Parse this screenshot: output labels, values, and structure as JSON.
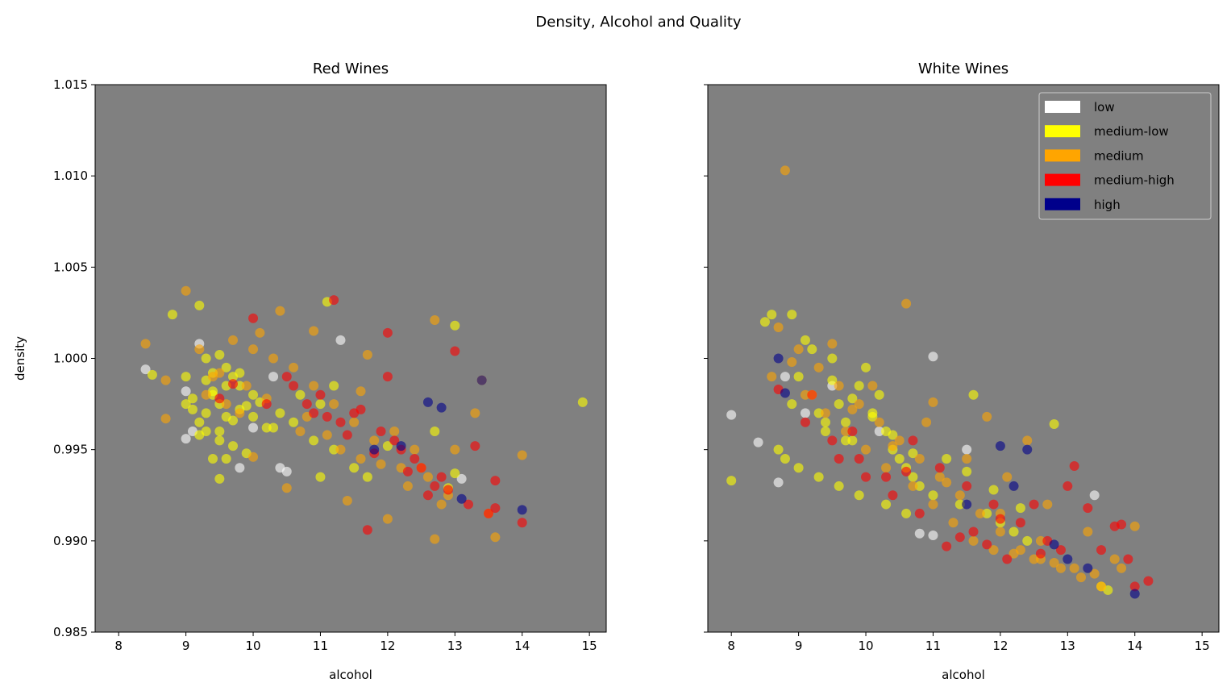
{
  "suptitle": "Density, Alcohol and Quality",
  "chart_data": [
    {
      "type": "scatter",
      "title": "Red Wines",
      "xlabel": "alcohol",
      "ylabel": "density",
      "xlim": [
        7.65,
        15.25
      ],
      "ylim": [
        0.985,
        1.015
      ],
      "xticks": [
        "8",
        "9",
        "10",
        "11",
        "12",
        "13",
        "14",
        "15"
      ],
      "yticks": [
        "0.985",
        "0.990",
        "0.995",
        "1.000",
        "1.005",
        "1.010",
        "1.015"
      ],
      "background": "#808080",
      "series": [
        {
          "name": "low",
          "color": "#ffffff",
          "x": [
            9.0,
            9.1,
            8.4,
            9.2,
            10.4,
            10.5,
            13.1,
            11.3,
            10.0,
            9.8,
            9.0,
            10.3
          ],
          "y": [
            0.9956,
            0.996,
            0.9994,
            1.0008,
            0.994,
            0.9938,
            0.9934,
            1.001,
            0.9962,
            0.994,
            0.9982,
            0.999
          ]
        },
        {
          "name": "medium-low",
          "color": "#ffff00",
          "x": [
            9.4,
            9.5,
            9.3,
            9.6,
            9.2,
            9.7,
            9.1,
            9.8,
            9.5,
            9.3,
            10.0,
            9.6,
            9.4,
            9.9,
            9.2,
            9.7,
            10.2,
            9.0,
            9.5,
            10.4,
            9.8,
            9.3,
            9.6,
            10.1,
            9.4,
            9.7,
            8.8,
            9.2,
            11.1,
            14.9,
            13.0,
            12.7,
            9.5,
            10.6,
            10.9,
            11.2,
            11.5,
            12.0,
            9.9,
            10.3,
            9.1,
            9.8,
            10.7,
            11.0,
            9.6,
            9.3,
            11.7,
            13.0,
            12.9,
            9.4,
            9.0,
            8.5,
            9.5,
            10.0,
            11.2,
            11.0
          ],
          "y": [
            0.998,
            0.9975,
            0.997,
            0.9985,
            0.9965,
            0.999,
            0.9978,
            0.9972,
            0.996,
            0.9988,
            0.9968,
            0.9995,
            0.9982,
            0.9974,
            0.9958,
            0.9966,
            0.9962,
            0.9975,
            0.9955,
            0.997,
            0.9985,
            1.0,
            0.9945,
            0.9976,
            0.9992,
            0.9952,
            1.0024,
            1.0029,
            1.0031,
            0.9976,
            1.0018,
            0.996,
            0.9934,
            0.9965,
            0.9955,
            0.995,
            0.994,
            0.9952,
            0.9948,
            0.9962,
            0.9972,
            0.9992,
            0.998,
            0.9975,
            0.9968,
            0.996,
            0.9935,
            0.9937,
            0.9929,
            0.9945,
            0.999,
            0.9991,
            1.0002,
            0.998,
            0.9985,
            0.9935
          ]
        },
        {
          "name": "medium",
          "color": "#ffa500",
          "x": [
            9.0,
            8.4,
            9.4,
            9.7,
            10.0,
            10.3,
            10.6,
            10.9,
            11.2,
            11.5,
            11.8,
            12.1,
            12.4,
            12.7,
            13.0,
            13.3,
            14.0,
            13.6,
            12.7,
            12.0,
            11.4,
            10.5,
            10.1,
            9.8,
            9.5,
            9.2,
            8.7,
            9.9,
            10.2,
            10.8,
            11.1,
            11.6,
            12.2,
            12.6,
            12.9,
            13.4,
            13.5,
            11.7,
            10.4,
            9.6,
            10.7,
            11.3,
            11.9,
            12.3,
            10.0,
            9.3,
            10.9,
            11.6,
            12.5,
            12.8,
            8.7
          ],
          "y": [
            1.0037,
            1.0008,
            0.999,
            1.001,
            1.0005,
            1.0,
            0.9995,
            0.9985,
            0.9975,
            0.9965,
            0.9955,
            0.996,
            0.995,
            1.0021,
            0.995,
            0.997,
            0.9947,
            0.9902,
            0.9901,
            0.9912,
            0.9922,
            0.9929,
            1.0014,
            0.997,
            0.9992,
            1.0005,
            0.9967,
            0.9985,
            0.9978,
            0.9968,
            0.9958,
            0.9945,
            0.994,
            0.9935,
            0.9925,
            0.9988,
            0.9915,
            1.0002,
            1.0026,
            0.9975,
            0.996,
            0.995,
            0.9942,
            0.993,
            0.9946,
            0.998,
            1.0015,
            0.9982,
            0.994,
            0.992,
            0.9988
          ]
        },
        {
          "name": "medium-high",
          "color": "#ff0000",
          "x": [
            10.0,
            11.2,
            12.0,
            12.0,
            13.0,
            11.7,
            13.6,
            13.6,
            14.0,
            11.0,
            11.5,
            12.2,
            12.5,
            12.8,
            13.3,
            10.8,
            11.3,
            11.9,
            12.4,
            12.1,
            11.6,
            12.7,
            13.5,
            10.6,
            11.1,
            11.4,
            12.6,
            13.2,
            9.7,
            9.5,
            10.2,
            10.5,
            10.9,
            11.8,
            12.3,
            12.9
          ],
          "y": [
            1.0022,
            1.0032,
            1.0014,
            0.999,
            1.0004,
            0.9906,
            0.9933,
            0.9918,
            0.991,
            0.998,
            0.997,
            0.995,
            0.994,
            0.9935,
            0.9952,
            0.9975,
            0.9965,
            0.996,
            0.9945,
            0.9955,
            0.9972,
            0.993,
            0.9915,
            0.9985,
            0.9968,
            0.9958,
            0.9925,
            0.992,
            0.9986,
            0.9978,
            0.9975,
            0.999,
            0.997,
            0.9948,
            0.9938,
            0.9928
          ]
        },
        {
          "name": "high",
          "color": "#00008b",
          "x": [
            12.6,
            12.8,
            13.4,
            14.0,
            13.1,
            12.2,
            11.8
          ],
          "y": [
            0.9976,
            0.9973,
            0.9988,
            0.9917,
            0.9923,
            0.9952,
            0.995
          ]
        }
      ]
    },
    {
      "type": "scatter",
      "title": "White Wines",
      "xlabel": "alcohol",
      "ylabel": "",
      "xlim": [
        7.65,
        15.25
      ],
      "ylim": [
        0.985,
        1.015
      ],
      "xticks": [
        "8",
        "9",
        "10",
        "11",
        "12",
        "13",
        "14",
        "15"
      ],
      "yticks": [],
      "background": "#808080",
      "legend": {
        "placement": "top-right",
        "entries": [
          {
            "label": "low",
            "color": "#ffffff"
          },
          {
            "label": "medium-low",
            "color": "#ffff00"
          },
          {
            "label": "medium",
            "color": "#ffa500"
          },
          {
            "label": "medium-high",
            "color": "#ff0000"
          },
          {
            "label": "high",
            "color": "#00008b"
          }
        ]
      },
      "series": [
        {
          "name": "low",
          "color": "#ffffff",
          "x": [
            8.0,
            8.4,
            8.7,
            11.0,
            13.4,
            9.5,
            10.2,
            11.5,
            9.1,
            8.8,
            10.8,
            11.0
          ],
          "y": [
            0.9969,
            0.9954,
            0.9932,
            1.0001,
            0.9925,
            0.9985,
            0.996,
            0.995,
            0.997,
            0.999,
            0.9904,
            0.9903
          ]
        },
        {
          "name": "medium-low",
          "color": "#ffff00",
          "x": [
            8.0,
            8.5,
            8.6,
            8.9,
            9.0,
            9.1,
            9.2,
            9.3,
            9.4,
            9.5,
            9.6,
            9.7,
            9.8,
            9.9,
            10.0,
            10.1,
            10.2,
            10.3,
            10.4,
            10.5,
            10.6,
            10.7,
            10.8,
            11.0,
            11.2,
            11.4,
            11.6,
            11.8,
            12.0,
            12.2,
            12.4,
            12.8,
            13.5,
            8.7,
            8.8,
            9.0,
            9.3,
            9.6,
            9.9,
            10.3,
            10.6,
            9.2,
            9.5,
            9.8,
            10.1,
            10.4,
            10.7,
            11.5,
            11.9,
            12.3,
            13.6,
            8.9,
            9.4,
            9.7
          ],
          "y": [
            0.9933,
            1.002,
            1.0024,
            1.0024,
            0.999,
            1.001,
            0.998,
            0.997,
            0.996,
            1.0,
            0.9975,
            0.9965,
            0.9955,
            0.9985,
            0.9995,
            0.997,
            0.998,
            0.996,
            0.995,
            0.9945,
            0.994,
            0.9935,
            0.993,
            0.9925,
            0.9945,
            0.992,
            0.998,
            0.9915,
            0.991,
            0.9905,
            0.99,
            0.9964,
            0.9875,
            0.995,
            0.9945,
            0.994,
            0.9935,
            0.993,
            0.9925,
            0.992,
            0.9915,
            1.0005,
            0.9988,
            0.9978,
            0.9968,
            0.9958,
            0.9948,
            0.9938,
            0.9928,
            0.9918,
            0.9873,
            0.9975,
            0.9965,
            0.9955
          ]
        },
        {
          "name": "medium",
          "color": "#ffa500",
          "x": [
            8.8,
            10.6,
            8.7,
            9.0,
            9.3,
            9.6,
            9.9,
            10.2,
            10.5,
            10.8,
            11.1,
            11.4,
            11.7,
            12.0,
            12.3,
            12.6,
            12.9,
            13.2,
            13.5,
            13.8,
            14.0,
            8.6,
            9.1,
            9.4,
            9.7,
            10.0,
            10.3,
            10.7,
            11.0,
            11.3,
            11.6,
            11.9,
            12.2,
            12.5,
            12.8,
            13.1,
            13.4,
            13.7,
            11.0,
            11.8,
            12.4,
            9.5,
            10.1,
            10.9,
            11.5,
            12.1,
            12.7,
            13.3,
            8.9,
            9.8,
            10.4,
            11.2,
            12.0,
            12.6
          ],
          "y": [
            1.0103,
            1.003,
            1.0017,
            1.0005,
            0.9995,
            0.9985,
            0.9975,
            0.9965,
            0.9955,
            0.9945,
            0.9935,
            0.9925,
            0.9915,
            0.9905,
            0.9895,
            0.989,
            0.9885,
            0.988,
            0.9875,
            0.9885,
            0.9908,
            0.999,
            0.998,
            0.997,
            0.996,
            0.995,
            0.994,
            0.993,
            0.992,
            0.991,
            0.99,
            0.9895,
            0.9893,
            0.989,
            0.9888,
            0.9885,
            0.9882,
            0.989,
            0.9976,
            0.9968,
            0.9955,
            1.0008,
            0.9985,
            0.9965,
            0.9945,
            0.9935,
            0.992,
            0.9905,
            0.9998,
            0.9972,
            0.9952,
            0.9932,
            0.9915,
            0.99
          ]
        },
        {
          "name": "medium-high",
          "color": "#ff0000",
          "x": [
            8.7,
            9.1,
            9.5,
            9.9,
            10.3,
            10.7,
            11.1,
            11.5,
            11.9,
            12.3,
            12.7,
            13.1,
            13.5,
            13.9,
            14.2,
            14.0,
            13.0,
            12.5,
            12.0,
            11.6,
            11.2,
            10.8,
            10.4,
            10.0,
            9.6,
            9.2,
            13.3,
            13.7,
            12.9,
            12.1,
            11.4,
            10.6,
            9.8,
            11.8,
            12.6,
            13.8
          ],
          "y": [
            0.9983,
            0.9965,
            0.9955,
            0.9945,
            0.9935,
            0.9955,
            0.994,
            0.993,
            0.992,
            0.991,
            0.99,
            0.9941,
            0.9895,
            0.989,
            0.9878,
            0.9875,
            0.993,
            0.992,
            0.9912,
            0.9905,
            0.9897,
            0.9915,
            0.9925,
            0.9935,
            0.9945,
            0.998,
            0.9918,
            0.9908,
            0.9895,
            0.989,
            0.9902,
            0.9938,
            0.996,
            0.9898,
            0.9893,
            0.9909
          ]
        },
        {
          "name": "high",
          "color": "#00008b",
          "x": [
            8.8,
            8.7,
            12.0,
            12.4,
            13.0,
            12.8,
            14.0,
            11.5,
            12.2,
            13.3
          ],
          "y": [
            0.9981,
            1.0,
            0.9952,
            0.995,
            0.989,
            0.9898,
            0.9871,
            0.992,
            0.993,
            0.9885
          ]
        }
      ]
    }
  ]
}
